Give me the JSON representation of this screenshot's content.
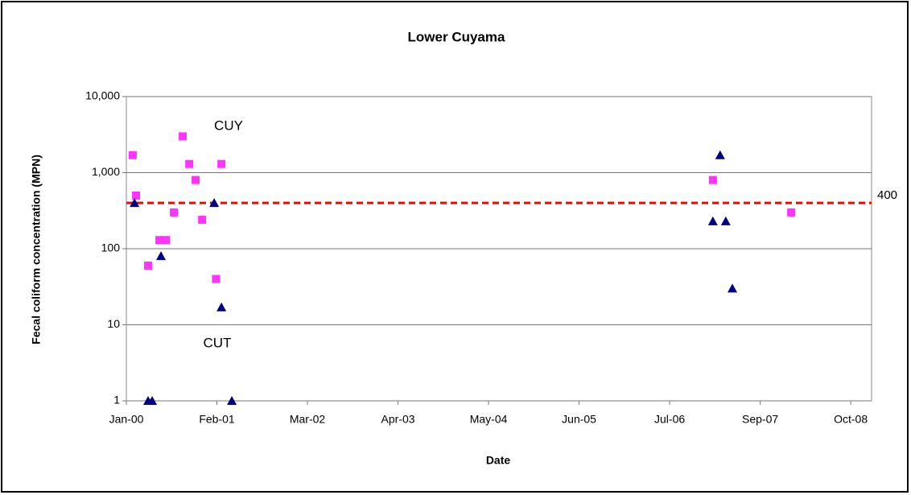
{
  "chart_data": {
    "type": "scatter",
    "title": "Lower Cuyama",
    "x_label": "Date",
    "y_label": "Fecal coliform concentration (MPN)",
    "log_y": true,
    "grid": true,
    "xlim": [
      36526,
      39818
    ],
    "xticks": [
      {
        "value": 36526,
        "label": "Jan-00"
      },
      {
        "value": 36926,
        "label": "Feb-01"
      },
      {
        "value": 37326,
        "label": "Mar-02"
      },
      {
        "value": 37726,
        "label": "Apr-03"
      },
      {
        "value": 38126,
        "label": "May-04"
      },
      {
        "value": 38526,
        "label": "Jun-05"
      },
      {
        "value": 38926,
        "label": "Jul-06"
      },
      {
        "value": 39326,
        "label": "Sep-07"
      },
      {
        "value": 39726,
        "label": "Oct-08"
      }
    ],
    "ylim": [
      1,
      10000
    ],
    "yticks": [
      1,
      10,
      100,
      {
        "value": 1000,
        "label": "1,000"
      },
      {
        "value": 10000,
        "label": "10,000"
      }
    ],
    "hline": 400,
    "hline_color": "#ff0000",
    "series": [
      {
        "name": "CUY",
        "color": "#ff33ff",
        "marker": "square",
        "x": [
          36554,
          36569,
          36622,
          36672,
          36701,
          36736,
          36775,
          36804,
          36832,
          36861,
          36922,
          36946,
          39117,
          39463
        ],
        "values": [
          1700,
          500,
          60,
          130,
          130,
          300,
          3000,
          1300,
          800,
          240,
          40,
          1300,
          800,
          300
        ]
      },
      {
        "name": "CUT",
        "color": "#000080",
        "marker": "triangle",
        "x": [
          36562,
          36622,
          36640,
          36679,
          36914,
          36946,
          36992,
          39117,
          39149,
          39174,
          39203
        ],
        "values": [
          400,
          1,
          1,
          80,
          400,
          17,
          1,
          230,
          1700,
          230,
          30
        ]
      }
    ]
  }
}
